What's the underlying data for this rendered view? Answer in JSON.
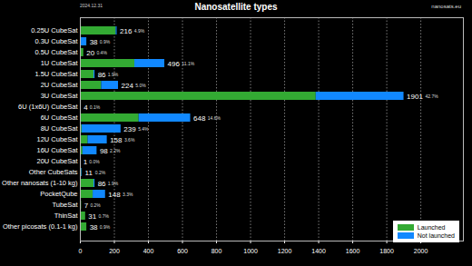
{
  "chart_data": {
    "type": "bar",
    "title": "Nanosatellite types",
    "subtitle": "2024.12.31",
    "source": "nanosats.eu",
    "orientation": "horizontal",
    "stacked": true,
    "grid": true,
    "legend": "bottom-right",
    "data_labels": true,
    "categories": [
      "0.25U CubeSat",
      "0.3U CubeSat",
      "0.5U CubeSat",
      "1U CubeSat",
      "1.5U CubeSat",
      "2U CubeSat",
      "3U CubeSat",
      "6U (1x6U) CubeSat",
      "6U CubeSat",
      "8U CubeSat",
      "12U CubeSat",
      "16U CubeSat",
      "20U CubeSat",
      "Other CubeSats",
      "Other nanosats (1-10 kg)",
      "PocketQube",
      "TubeSat",
      "ThinSat",
      "Other picosats (0.1-1 kg)"
    ],
    "series": [
      {
        "name": "Launched",
        "color": "#33aa33",
        "values": [
          210,
          0,
          20,
          320,
          80,
          125,
          1385,
          4,
          345,
          10,
          45,
          15,
          0,
          8,
          80,
          75,
          7,
          31,
          38
        ]
      },
      {
        "name": "Not launched",
        "color": "#1188ff",
        "values": [
          6,
          38,
          0,
          176,
          6,
          99,
          516,
          0,
          303,
          229,
          113,
          83,
          1,
          3,
          6,
          73,
          0,
          0,
          0
        ]
      }
    ],
    "totals": [
      216,
      38,
      20,
      496,
      86,
      224,
      1901,
      4,
      648,
      239,
      158,
      98,
      1,
      11,
      86,
      148,
      7,
      31,
      38
    ],
    "percentages": [
      4.9,
      0.9,
      0.4,
      11.1,
      1.9,
      5.0,
      42.7,
      0.1,
      14.6,
      5.4,
      3.6,
      2.2,
      0.0,
      0.2,
      1.9,
      3.3,
      0.2,
      0.7,
      0.9
    ],
    "percent_labels": [
      "4.9%",
      "0.9%",
      "0.4%",
      "11.1%",
      "1.9%",
      "5.0%",
      "42.7%",
      "0.1%",
      "14.6%",
      "5.4%",
      "3.6%",
      "2.2%",
      "0.0%",
      "0.2%",
      "1.9%",
      "3.3%",
      "0.2%",
      "0.7%",
      "0.9%"
    ],
    "xlim": [
      0,
      2250
    ],
    "xticks": [
      0,
      200,
      400,
      600,
      800,
      1000,
      1200,
      1400,
      1600,
      1800,
      2000
    ]
  }
}
